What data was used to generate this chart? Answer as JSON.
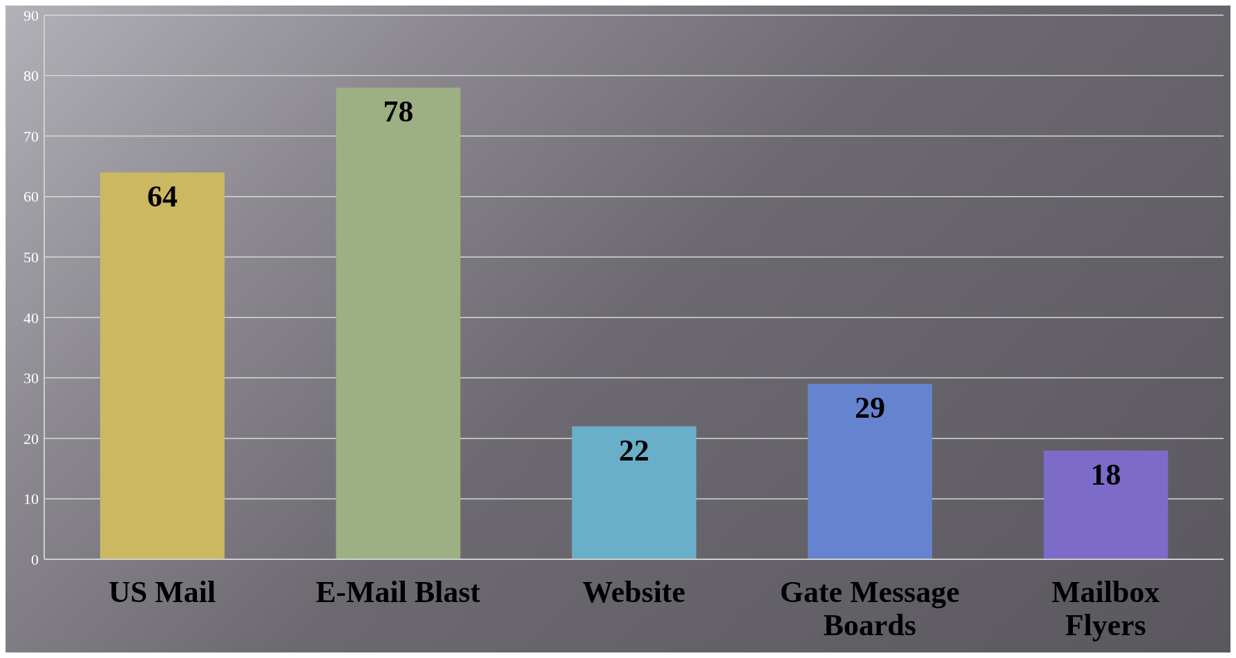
{
  "chart_data": {
    "type": "bar",
    "categories": [
      "US Mail",
      "E-Mail Blast",
      "Website",
      "Gate Message Boards",
      "Mailbox Flyers"
    ],
    "values": [
      64,
      78,
      22,
      29,
      18
    ],
    "colors": [
      "#cdb862",
      "#9db084",
      "#69afc9",
      "#6683cf",
      "#7d6bc9"
    ],
    "ylim": [
      0,
      90
    ],
    "yticks": [
      0,
      10,
      20,
      30,
      40,
      50,
      60,
      70,
      80,
      90
    ],
    "grid": "y",
    "data_labels": true
  }
}
